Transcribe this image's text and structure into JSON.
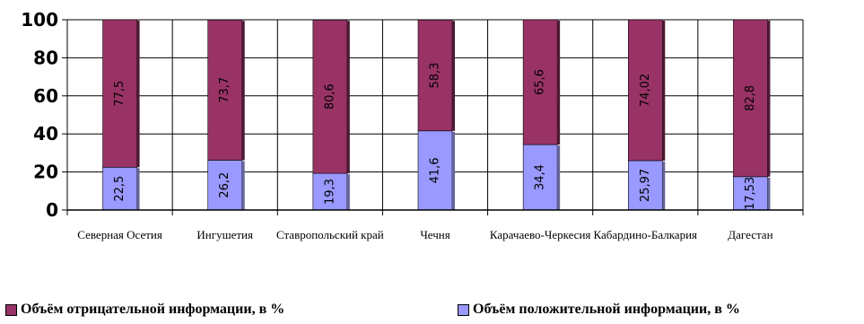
{
  "chart_data": {
    "type": "bar",
    "stacked": true,
    "categories": [
      "Северная Осетия",
      "Ингушетия",
      "Ставропольский край",
      "Чечня",
      "Карачаево-Черкесия",
      "Кабардино-Балкария",
      "Дагестан"
    ],
    "series": [
      {
        "name": "Объём положительной информации, в %",
        "values": [
          22.5,
          26.2,
          19.3,
          41.6,
          34.4,
          25.97,
          17.53
        ],
        "labels": [
          "22,5",
          "26,2",
          "19,3",
          "41,6",
          "34,4",
          "25,97",
          "17,53"
        ],
        "color": "#9999ff"
      },
      {
        "name": "Объём отрицательной информации, в %",
        "values": [
          77.5,
          73.7,
          80.6,
          58.3,
          65.6,
          74.02,
          82.8
        ],
        "labels": [
          "77,5",
          "73,7",
          "80,6",
          "58,3",
          "65,6",
          "74,02",
          "82,8"
        ],
        "color": "#993366"
      }
    ],
    "yticks": [
      "0",
      "20",
      "40",
      "60",
      "80",
      "100"
    ],
    "ylim": [
      0,
      100
    ],
    "grid": true,
    "legend_position": "bottom"
  }
}
